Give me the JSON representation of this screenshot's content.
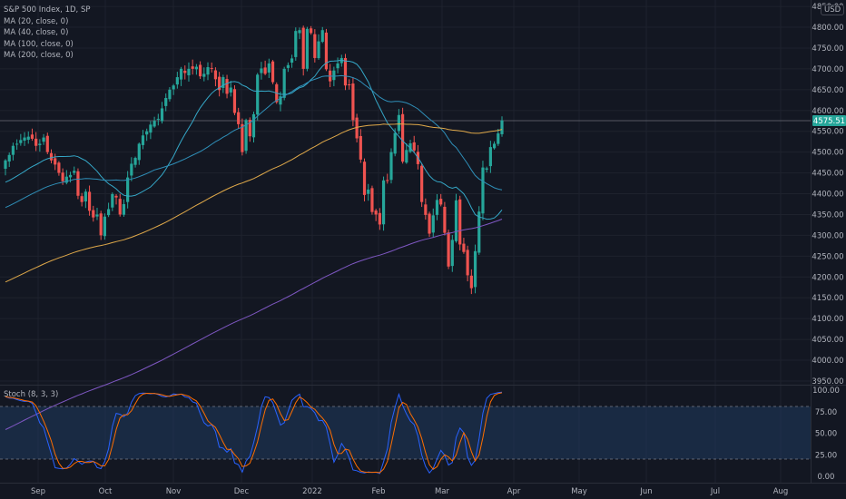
{
  "header": {
    "symbol": "S&P 500 Index, 1D, SP",
    "ma_labels": [
      "MA (20, close, 0)",
      "MA (40, close, 0)",
      "MA (100, close, 0)",
      "MA (200, close, 0)"
    ],
    "currency": "USD",
    "stoch_label": "Stoch (8, 3, 3)"
  },
  "colors": {
    "background": "#131722",
    "up": "#26a69a",
    "down": "#ef5350",
    "ma20": "#35a8c8",
    "ma40": "#2f8fb8",
    "ma100": "#e0a94a",
    "ma200": "#7e57c2",
    "stoch_k": "#2962ff",
    "stoch_d": "#ff6d00",
    "price_badge": "#26a69a"
  },
  "last_price": "4575.51",
  "chart_data": {
    "type": "candlestick",
    "price_axis": {
      "ylim": [
        3950,
        4850
      ],
      "ticks": [
        "4850.00",
        "4800.00",
        "4750.00",
        "4700.00",
        "4650.00",
        "4600.00",
        "4550.00",
        "4500.00",
        "4450.00",
        "4400.00",
        "4350.00",
        "4300.00",
        "4250.00",
        "4200.00",
        "4150.00",
        "4100.00",
        "4050.00",
        "4000.00",
        "3950.00"
      ]
    },
    "x_axis_labels": [
      "Sep",
      "Oct",
      "Nov",
      "Dec",
      "2022",
      "Feb",
      "Mar",
      "Apr",
      "May",
      "Jun",
      "Jul",
      "Aug"
    ],
    "close": [
      4480,
      4493,
      4515,
      4520,
      4529,
      4535,
      4537,
      4532,
      4515,
      4520,
      4535,
      4500,
      4480,
      4470,
      4450,
      4430,
      4441,
      4445,
      4455,
      4395,
      4380,
      4405,
      4359,
      4343,
      4350,
      4300,
      4345,
      4363,
      4399,
      4391,
      4350,
      4375,
      4439,
      4472,
      4486,
      4520,
      4540,
      4550,
      4566,
      4575,
      4580,
      4605,
      4630,
      4650,
      4660,
      4680,
      4700,
      4690,
      4700,
      4700,
      4705,
      4682,
      4688,
      4704,
      4700,
      4675,
      4649,
      4680,
      4640,
      4655,
      4594,
      4567,
      4500,
      4577,
      4538,
      4591,
      4686,
      4701,
      4688,
      4713,
      4668,
      4620,
      4634,
      4700,
      4709,
      4725,
      4791,
      4793,
      4700,
      4796,
      4786,
      4726,
      4766,
      4793,
      4699,
      4670,
      4696,
      4713,
      4726,
      4660,
      4662,
      4577,
      4533,
      4482,
      4397,
      4410,
      4356,
      4350,
      4326,
      4432,
      4431,
      4500,
      4546,
      4589,
      4477,
      4505,
      4521,
      4504,
      4471,
      4380,
      4349,
      4304,
      4348,
      4385,
      4374,
      4306,
      4225,
      4289,
      4384,
      4278,
      4260,
      4204,
      4173,
      4262,
      4357,
      4463,
      4461,
      4512,
      4520,
      4545,
      4576
    ],
    "ma_series": {
      "names": [
        "MA (20, close, 0)",
        "MA (40, close, 0)",
        "MA (100, close, 0)",
        "MA (200, close, 0)"
      ]
    },
    "stoch_axis": {
      "ylim": [
        0,
        100
      ],
      "ticks": [
        "100.00",
        "75.00",
        "50.00",
        "25.00",
        "0.00"
      ],
      "bands": [
        80,
        20
      ]
    }
  }
}
